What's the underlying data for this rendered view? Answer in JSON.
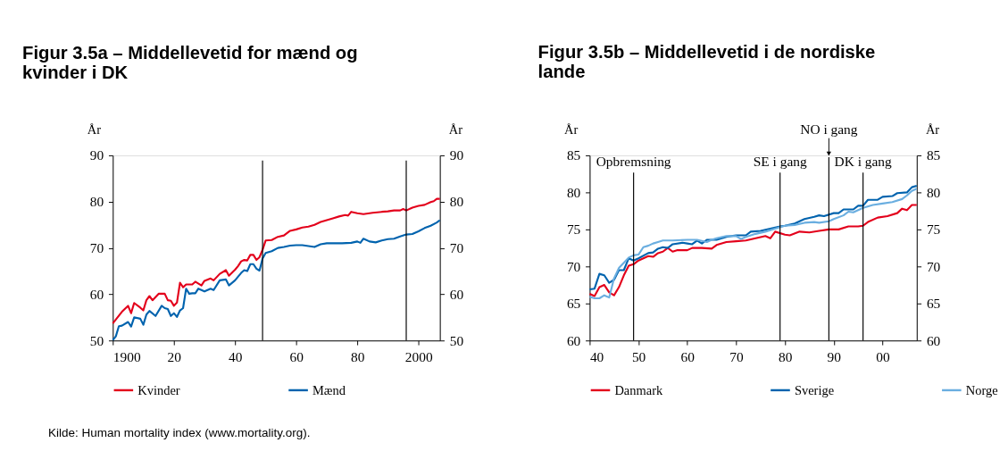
{
  "chart_data": [
    {
      "type": "line",
      "title": "Figur 3.5a – Middellevetid for mænd og kvinder i DK",
      "ylabel": "År",
      "y2label": "År",
      "xlim": [
        1900,
        2007
      ],
      "xticks": [
        1900,
        {
          "value": 1920,
          "label": "20"
        },
        {
          "value": 1940,
          "label": "40"
        },
        {
          "value": 1960,
          "label": "60"
        },
        {
          "value": 1980,
          "label": "80"
        },
        2000
      ],
      "ylim": [
        50,
        90
      ],
      "yticks": [
        50,
        60,
        70,
        80,
        90
      ],
      "y2lim": [
        50,
        90
      ],
      "y2ticks": [
        50,
        60,
        70,
        80,
        90
      ],
      "series": [
        {
          "name": "Kvinder",
          "color": "#e3001b",
          "x": [
            1900,
            1903,
            1905,
            1906,
            1907,
            1909,
            1910,
            1911,
            1912,
            1913,
            1915,
            1917,
            1918,
            1919,
            1920,
            1921,
            1922,
            1923,
            1924,
            1926,
            1927,
            1929,
            1930,
            1932,
            1933,
            1935,
            1937,
            1938,
            1940,
            1941,
            1942,
            1943,
            1944,
            1945,
            1946,
            1947,
            1948,
            1949,
            1950,
            1952,
            1954,
            1956,
            1958,
            1960,
            1962,
            1964,
            1966,
            1968,
            1970,
            1972,
            1974,
            1976,
            1977,
            1978,
            1980,
            1982,
            1985,
            1988,
            1990,
            1992,
            1994,
            1995,
            1996,
            1998,
            2000,
            2002,
            2004,
            2005,
            2006,
            2007
          ],
          "values": [
            53.7,
            56.2,
            57.5,
            55.9,
            58.1,
            57.1,
            56.5,
            58.7,
            59.6,
            58.7,
            60.1,
            60.1,
            58.7,
            58.6,
            57.5,
            58.2,
            62.5,
            61.5,
            62.1,
            62.1,
            62.7,
            61.9,
            62.9,
            63.4,
            63.0,
            64.4,
            65.2,
            64.0,
            65.3,
            66.1,
            67.1,
            67.4,
            67.3,
            68.5,
            68.5,
            67.4,
            68.0,
            69.6,
            71.6,
            71.7,
            72.4,
            72.7,
            73.7,
            74.0,
            74.4,
            74.6,
            75.0,
            75.6,
            76.0,
            76.4,
            76.8,
            77.1,
            77.0,
            77.8,
            77.5,
            77.3,
            77.6,
            77.8,
            77.9,
            78.1,
            78.1,
            78.4,
            78.1,
            78.7,
            79.1,
            79.3,
            79.9,
            80.1,
            80.6,
            80.6
          ]
        },
        {
          "name": "Mænd",
          "color": "#0063ae",
          "x": [
            1900,
            1901,
            1902,
            1903,
            1905,
            1906,
            1907,
            1909,
            1910,
            1911,
            1912,
            1914,
            1916,
            1917,
            1918,
            1919,
            1920,
            1921,
            1922,
            1923,
            1924,
            1925,
            1926,
            1927,
            1928,
            1930,
            1932,
            1933,
            1935,
            1937,
            1938,
            1940,
            1942,
            1943,
            1944,
            1945,
            1946,
            1947,
            1948,
            1949,
            1950,
            1952,
            1954,
            1956,
            1958,
            1960,
            1962,
            1964,
            1966,
            1968,
            1970,
            1975,
            1978,
            1980,
            1981,
            1982,
            1984,
            1986,
            1988,
            1990,
            1992,
            1994,
            1996,
            1998,
            2000,
            2002,
            2004,
            2006,
            2007
          ],
          "values": [
            50.1,
            50.9,
            53.1,
            53.2,
            54.0,
            53.0,
            55.0,
            54.7,
            53.4,
            55.6,
            56.4,
            55.3,
            57.5,
            57.0,
            56.8,
            55.3,
            55.9,
            55.1,
            56.5,
            57.0,
            61.2,
            60.1,
            60.2,
            60.2,
            61.2,
            60.6,
            61.2,
            60.9,
            63.0,
            63.2,
            61.9,
            63.0,
            64.6,
            65.2,
            65.0,
            66.5,
            66.5,
            65.5,
            65.1,
            67.7,
            68.9,
            69.3,
            70.0,
            70.2,
            70.5,
            70.6,
            70.6,
            70.4,
            70.2,
            70.8,
            71.0,
            71.0,
            71.1,
            71.4,
            71.1,
            72.0,
            71.4,
            71.2,
            71.6,
            71.9,
            72.0,
            72.5,
            72.9,
            73.0,
            73.6,
            74.3,
            74.8,
            75.5,
            76.0
          ]
        }
      ],
      "ref_lines": [
        {
          "axis": "x",
          "value": 1949
        },
        {
          "axis": "x",
          "value": 1996
        }
      ],
      "grid": false,
      "legend": "bottom",
      "line_style": "solid",
      "marker": "none",
      "annotations": [
        "Kilde: Human mortality index (www.mortality.org)."
      ]
    },
    {
      "type": "line",
      "title": "Figur 3.5b – Middellevetid i de nordiske lande",
      "ylabel": "År",
      "y2label": "År",
      "xlim": [
        1940,
        2007
      ],
      "xticks": [
        {
          "value": 1940,
          "label": "40"
        },
        {
          "value": 1950,
          "label": "50"
        },
        {
          "value": 1960,
          "label": "60"
        },
        {
          "value": 1970,
          "label": "70"
        },
        {
          "value": 1980,
          "label": "80"
        },
        {
          "value": 1990,
          "label": "90"
        },
        {
          "value": 2000,
          "label": "00"
        }
      ],
      "ylim": [
        60,
        85
      ],
      "yticks": [
        60,
        65,
        70,
        75,
        80,
        85
      ],
      "y2lim": [
        60,
        85
      ],
      "y2ticks": [
        60,
        65,
        70,
        75,
        80,
        85
      ],
      "series": [
        {
          "name": "Danmark",
          "color": "#e3001b",
          "x": [
            1940,
            1941,
            1942,
            1943,
            1944,
            1945,
            1946,
            1947,
            1948,
            1949,
            1950,
            1952,
            1953,
            1954,
            1955,
            1956,
            1957,
            1958,
            1960,
            1961,
            1963,
            1965,
            1966,
            1968,
            1970,
            1972,
            1974,
            1976,
            1977,
            1978,
            1980,
            1981,
            1983,
            1985,
            1987,
            1989,
            1991,
            1993,
            1995,
            1996,
            1997,
            1999,
            2001,
            2003,
            2004,
            2005,
            2006,
            2007
          ],
          "values": [
            66.3,
            66.0,
            67.2,
            67.5,
            66.5,
            66.1,
            67.2,
            68.8,
            70.1,
            70.3,
            70.8,
            71.4,
            71.3,
            71.8,
            72.0,
            72.5,
            72.0,
            72.2,
            72.2,
            72.5,
            72.5,
            72.4,
            72.9,
            73.3,
            73.4,
            73.5,
            73.8,
            74.1,
            73.8,
            74.7,
            74.3,
            74.2,
            74.7,
            74.6,
            74.8,
            75.0,
            75.0,
            75.4,
            75.4,
            75.5,
            76.0,
            76.6,
            76.8,
            77.2,
            77.8,
            77.6,
            78.3,
            78.3
          ]
        },
        {
          "name": "Sverige",
          "color": "#0063ae",
          "x": [
            1940,
            1941,
            1942,
            1943,
            1944,
            1945,
            1946,
            1947,
            1948,
            1949,
            1950,
            1952,
            1953,
            1954,
            1955,
            1956,
            1957,
            1959,
            1960,
            1961,
            1962,
            1963,
            1964,
            1966,
            1968,
            1970,
            1972,
            1973,
            1975,
            1977,
            1979,
            1980,
            1982,
            1984,
            1986,
            1987,
            1988,
            1990,
            1991,
            1992,
            1994,
            1995,
            1996,
            1997,
            1999,
            2000,
            2002,
            2003,
            2005,
            2006,
            2007
          ],
          "values": [
            66.9,
            67.0,
            69.0,
            68.8,
            67.8,
            68.2,
            69.5,
            69.5,
            71.1,
            70.8,
            71.1,
            71.8,
            71.9,
            72.4,
            72.6,
            72.5,
            73.0,
            73.2,
            73.1,
            73.0,
            73.5,
            73.1,
            73.6,
            73.6,
            74.0,
            74.2,
            74.2,
            74.7,
            74.8,
            75.1,
            75.4,
            75.5,
            75.8,
            76.4,
            76.7,
            76.9,
            76.8,
            77.2,
            77.2,
            77.7,
            77.7,
            78.2,
            78.2,
            79.0,
            79.0,
            79.4,
            79.5,
            79.9,
            80.0,
            80.7,
            80.9
          ]
        },
        {
          "name": "Norge",
          "color": "#6aaee0",
          "x": [
            1940,
            1941,
            1942,
            1943,
            1944,
            1945,
            1946,
            1947,
            1948,
            1949,
            1950,
            1951,
            1952,
            1953,
            1954,
            1955,
            1957,
            1960,
            1962,
            1964,
            1965,
            1966,
            1968,
            1970,
            1971,
            1972,
            1974,
            1976,
            1978,
            1980,
            1982,
            1984,
            1986,
            1987,
            1989,
            1990,
            1992,
            1993,
            1994,
            1996,
            1998,
            2000,
            2002,
            2004,
            2005,
            2006,
            2007
          ],
          "values": [
            65.9,
            65.7,
            65.7,
            66.1,
            65.8,
            68.4,
            69.8,
            70.5,
            71.2,
            71.5,
            71.6,
            72.6,
            72.8,
            73.1,
            73.3,
            73.5,
            73.5,
            73.6,
            73.6,
            73.3,
            73.6,
            73.8,
            74.1,
            74.1,
            73.7,
            74.0,
            74.4,
            74.7,
            75.1,
            75.5,
            75.6,
            75.9,
            76.0,
            75.9,
            76.1,
            76.4,
            76.9,
            77.4,
            77.3,
            77.9,
            78.3,
            78.5,
            78.7,
            79.1,
            79.6,
            80.2,
            80.5
          ]
        }
      ],
      "ref_lines": [
        {
          "axis": "x",
          "value": 1949,
          "label": "Opbremsning"
        },
        {
          "axis": "x",
          "value": 1979,
          "label": "SE i gang"
        },
        {
          "axis": "x",
          "value": 1989,
          "label": "NO i gang"
        },
        {
          "axis": "x",
          "value": 1996,
          "label": "DK i gang"
        }
      ],
      "grid": false,
      "legend": "bottom",
      "line_style": "solid",
      "marker": "none"
    }
  ]
}
